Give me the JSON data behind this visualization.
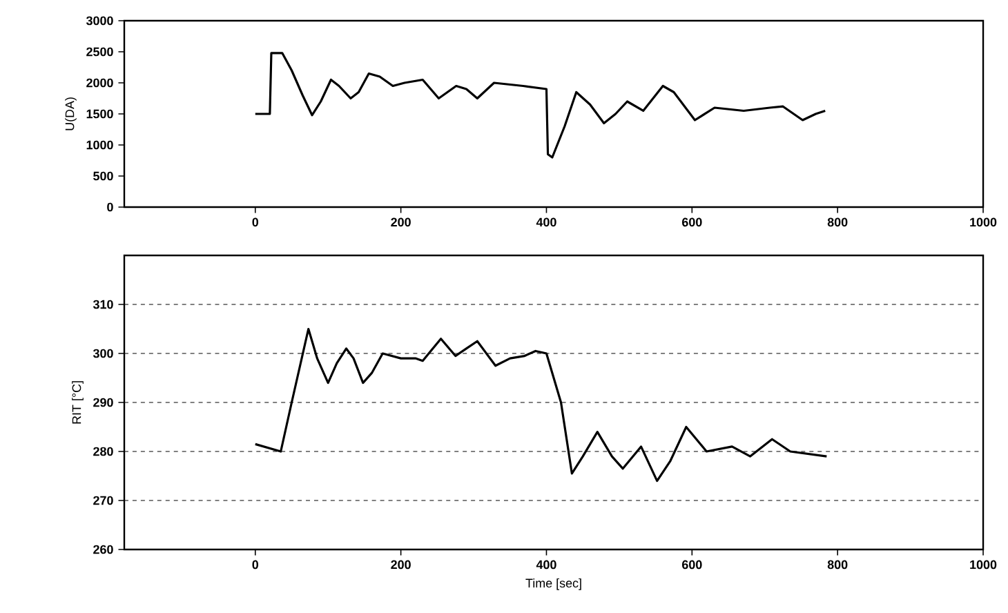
{
  "chart_data": [
    {
      "type": "line",
      "ylabel": "U(DA)",
      "xlim": [
        -180,
        1000
      ],
      "xticks": [
        0,
        200,
        400,
        600,
        800,
        1000
      ],
      "ylim": [
        0,
        3000
      ],
      "yticks": [
        0,
        500,
        1000,
        1500,
        2000,
        2500,
        3000
      ],
      "grid": false,
      "series": [
        {
          "color": "#000000",
          "x": [
            0,
            20,
            22,
            37,
            50,
            65,
            78,
            90,
            104,
            115,
            131,
            142,
            156,
            171,
            189,
            205,
            230,
            252,
            276,
            290,
            305,
            328,
            368,
            400,
            402,
            408,
            425,
            441,
            460,
            479,
            495,
            511,
            533,
            560,
            575,
            604,
            631,
            671,
            707,
            725,
            752,
            770,
            783
          ],
          "values": [
            1500,
            1500,
            2480,
            2480,
            2200,
            1800,
            1480,
            1700,
            2050,
            1950,
            1750,
            1850,
            2150,
            2100,
            1950,
            2000,
            2050,
            1750,
            1950,
            1900,
            1750,
            2000,
            1950,
            1900,
            850,
            800,
            1300,
            1850,
            1650,
            1350,
            1500,
            1700,
            1550,
            1950,
            1850,
            1400,
            1600,
            1550,
            1600,
            1620,
            1400,
            1500,
            1550
          ]
        }
      ]
    },
    {
      "type": "line",
      "xlabel": "Time [sec]",
      "ylabel": "RIT [°C]",
      "xlim": [
        -180,
        1000
      ],
      "xticks": [
        0,
        200,
        400,
        600,
        800,
        1000
      ],
      "ylim": [
        260,
        320
      ],
      "yticks": [
        260,
        270,
        280,
        290,
        300,
        310
      ],
      "grid": "y",
      "line_style": "solid",
      "series": [
        {
          "color": "#000000",
          "x": [
            0,
            35,
            50,
            73,
            85,
            100,
            112,
            125,
            135,
            148,
            160,
            175,
            200,
            220,
            230,
            255,
            275,
            290,
            305,
            330,
            350,
            370,
            385,
            400,
            420,
            435,
            450,
            470,
            490,
            505,
            530,
            552,
            570,
            592,
            620,
            655,
            680,
            710,
            735,
            785
          ],
          "values": [
            281.5,
            280,
            290,
            305,
            299,
            294,
            298,
            301,
            299,
            294,
            296,
            300,
            299,
            299,
            298.5,
            303,
            299.5,
            301,
            302.5,
            297.5,
            299,
            299.5,
            300.5,
            300,
            290,
            275.5,
            279,
            284,
            279,
            276.5,
            281,
            274,
            278,
            285,
            280,
            281,
            279,
            282.5,
            280,
            279
          ]
        }
      ]
    }
  ]
}
